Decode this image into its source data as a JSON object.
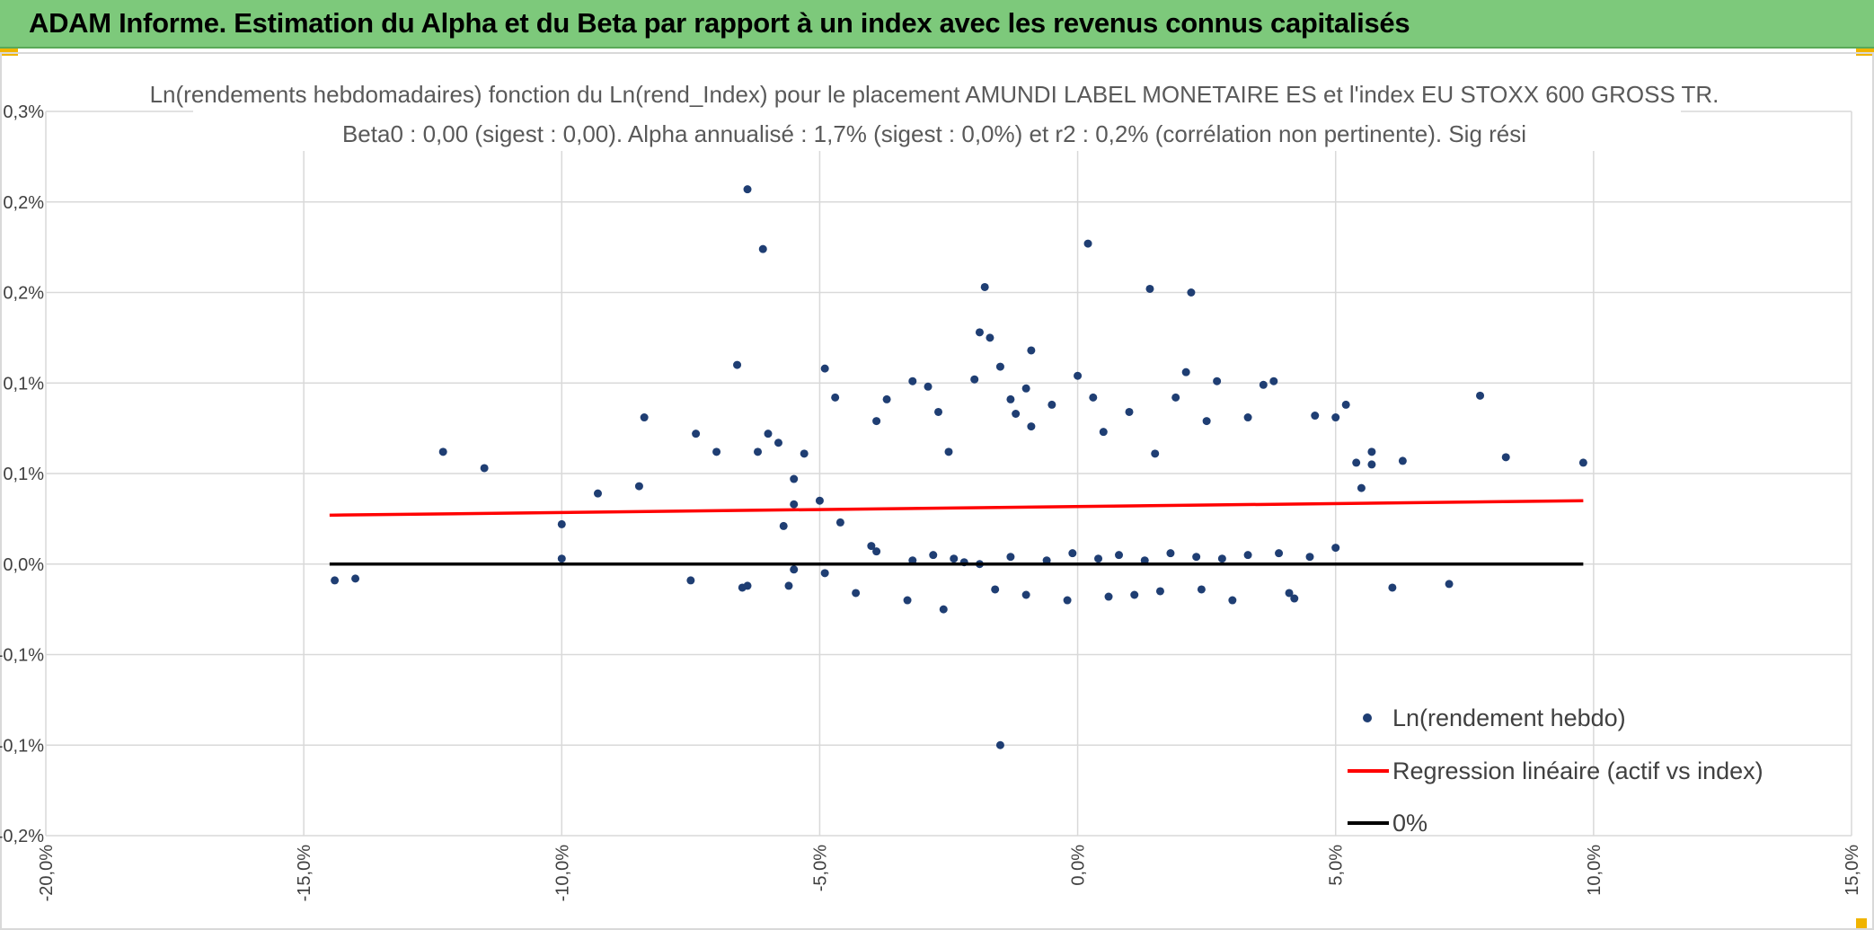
{
  "header": {
    "title": "ADAM Informe. Estimation du Alpha et du Beta par rapport à un index avec les revenus connus capitalisés",
    "background": "#7dc97b"
  },
  "chart_data": {
    "type": "scatter",
    "title": "Ln(rendements hebdomadaires) fonction du Ln(rend_Index) pour le placement AMUNDI LABEL MONETAIRE ES et l'index EU STOXX 600 GROSS TR.",
    "subtitle": "Beta0 : 0,00 (sigest : 0,00). Alpha annualisé : 1,7% (sigest : 0,0%) et r2 : 0,2% (corrélation non pertinente). Sig rési",
    "xlabel": "",
    "ylabel": "",
    "xlim": [
      -20,
      15
    ],
    "ylim": [
      -0.15,
      0.25
    ],
    "x_ticks": [
      -20,
      -15,
      -10,
      -5,
      0,
      5,
      10,
      15
    ],
    "x_tick_labels": [
      "-20,0%",
      "-15,0%",
      "-10,0%",
      "-5,0%",
      "0,0%",
      "5,0%",
      "10,0%",
      "15,0%"
    ],
    "y_ticks": [
      0.25,
      0.2,
      0.15,
      0.1,
      0.05,
      0,
      -0.05,
      -0.1,
      -0.15
    ],
    "y_tick_labels": [
      "0,3%",
      "0,2%",
      "0,2%",
      "0,1%",
      "0,1%",
      "0,0%",
      "-0,1%",
      "-0,1%",
      "-0,2%"
    ],
    "grid": true,
    "legend_position": "bottom-right",
    "series": [
      {
        "name": "Ln(rendement hebdo)",
        "kind": "scatter",
        "color": "#1f3e73",
        "x": [
          -6.4,
          -6.1,
          0.2,
          -1.8,
          1.4,
          2.2,
          -1.9,
          -6.6,
          -8.4,
          -11.5,
          -12.3,
          -14.4,
          -14.0,
          -9.3,
          -8.5,
          -10.0,
          -10.0,
          -7.4,
          -7.0,
          -7.5,
          -6.5,
          -6.0,
          -6.2,
          -5.8,
          -5.5,
          -5.5,
          -5.3,
          -4.9,
          -4.7,
          -5.0,
          -4.6,
          -3.9,
          -3.7,
          -3.2,
          -2.9,
          -2.7,
          -2.5,
          -2.0,
          -1.7,
          -1.5,
          -1.3,
          -1.2,
          -1.0,
          -0.9,
          -0.9,
          -0.5,
          0.0,
          0.3,
          0.5,
          1.0,
          1.5,
          1.9,
          2.1,
          2.5,
          2.7,
          3.3,
          3.6,
          3.8,
          4.6,
          5.0,
          5.2,
          5.4,
          5.7,
          5.7,
          6.3,
          7.2,
          7.8,
          8.3,
          9.8,
          6.1,
          5.5,
          4.2,
          4.1,
          3.0,
          2.4,
          1.6,
          1.1,
          0.6,
          -0.2,
          -1.0,
          -1.6,
          -2.6,
          -3.3,
          -4.3,
          -5.6,
          -6.4,
          -1.5,
          -4.9,
          -5.5,
          -5.7,
          -4.0,
          -3.9,
          -3.2,
          -2.8,
          -2.4,
          -2.2,
          -1.9,
          -1.3,
          -0.6,
          -0.1,
          0.4,
          0.8,
          1.3,
          1.8,
          2.3,
          2.8,
          3.3,
          3.9,
          4.5,
          5.0
        ],
        "y": [
          0.207,
          0.174,
          0.177,
          0.153,
          0.152,
          0.15,
          0.128,
          0.11,
          0.081,
          0.053,
          0.062,
          -0.009,
          -0.008,
          0.039,
          0.043,
          0.022,
          0.003,
          0.072,
          0.062,
          -0.009,
          -0.013,
          0.072,
          0.062,
          0.067,
          0.047,
          0.033,
          0.061,
          0.108,
          0.092,
          0.035,
          0.023,
          0.079,
          0.091,
          0.101,
          0.098,
          0.084,
          0.062,
          0.102,
          0.125,
          0.109,
          0.091,
          0.083,
          0.097,
          0.076,
          0.118,
          0.088,
          0.104,
          0.092,
          0.073,
          0.084,
          0.061,
          0.092,
          0.106,
          0.079,
          0.101,
          0.081,
          0.099,
          0.101,
          0.082,
          0.081,
          0.088,
          0.056,
          0.062,
          0.055,
          0.057,
          -0.011,
          0.093,
          0.059,
          0.056,
          -0.013,
          0.042,
          -0.019,
          -0.016,
          -0.02,
          -0.014,
          -0.015,
          -0.017,
          -0.018,
          -0.02,
          -0.017,
          -0.014,
          -0.025,
          -0.02,
          -0.016,
          -0.012,
          -0.012,
          -0.1,
          -0.005,
          -0.003,
          0.021,
          0.01,
          0.007,
          0.002,
          0.005,
          0.003,
          0.001,
          0.0,
          0.004,
          0.002,
          0.006,
          0.003,
          0.005,
          0.002,
          0.006,
          0.004,
          0.003,
          0.005,
          0.006,
          0.004,
          0.009
        ]
      },
      {
        "name": "Regression linéaire (actif vs index)",
        "kind": "line",
        "color": "#ff0000",
        "x": [
          -14.5,
          9.8
        ],
        "y": [
          0.027,
          0.035
        ]
      },
      {
        "name": "0%",
        "kind": "line",
        "color": "#000000",
        "x": [
          -14.5,
          9.8
        ],
        "y": [
          0,
          0
        ]
      }
    ]
  }
}
